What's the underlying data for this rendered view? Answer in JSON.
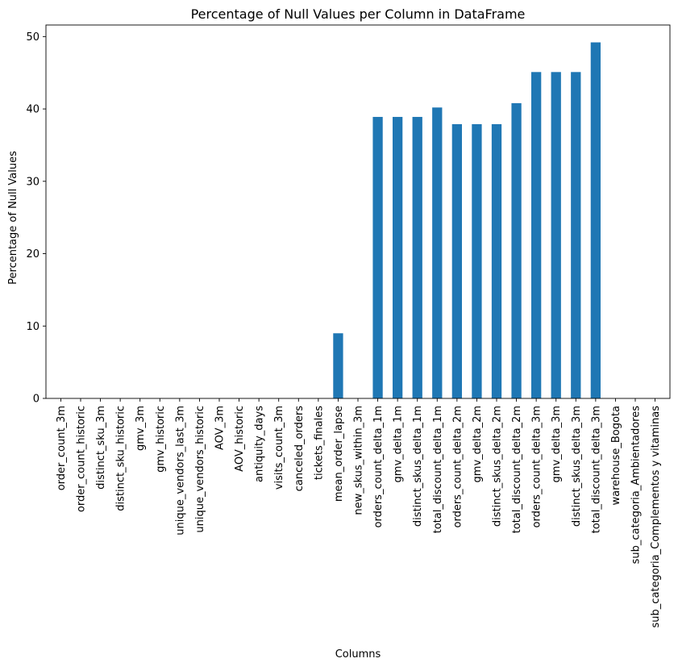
{
  "chart_data": {
    "type": "bar",
    "title": "Percentage of Null Values per Column in DataFrame",
    "xlabel": "Columns",
    "ylabel": "Percentage of Null Values",
    "ylim": [
      0,
      51.6
    ],
    "yticks": [
      0,
      10,
      20,
      30,
      40,
      50
    ],
    "grid": false,
    "legend": "none",
    "bar_color": "#1f77b4",
    "categories": [
      "order_count_3m",
      "order_count_historic",
      "distinct_sku_3m",
      "distinct_sku_historic",
      "gmv_3m",
      "gmv_historic",
      "unique_vendors_last_3m",
      "unique_vendors_historic",
      "AOV_3m",
      "AOV_historic",
      "antiquity_days",
      "visits_count_3m",
      "canceled_orders",
      "tickets_finales",
      "mean_order_lapse",
      "new_skus_within_3m",
      "orders_count_delta_1m",
      "gmv_delta_1m",
      "distinct_skus_delta_1m",
      "total_discount_delta_1m",
      "orders_count_delta_2m",
      "gmv_delta_2m",
      "distinct_skus_delta_2m",
      "total_discount_delta_2m",
      "orders_count_delta_3m",
      "gmv_delta_3m",
      "distinct_skus_delta_3m",
      "total_discount_delta_3m",
      "warehouse_Bogota",
      "sub_categoria_Ambientadores",
      "sub_categoria_Complementos y vitaminas"
    ],
    "values": [
      0,
      0,
      0,
      0,
      0,
      0,
      0,
      0,
      0,
      0,
      0,
      0,
      0,
      0,
      9.0,
      0,
      38.9,
      38.9,
      38.9,
      40.2,
      37.9,
      37.9,
      37.9,
      40.8,
      45.1,
      45.1,
      45.1,
      49.2,
      0,
      0,
      0
    ]
  }
}
